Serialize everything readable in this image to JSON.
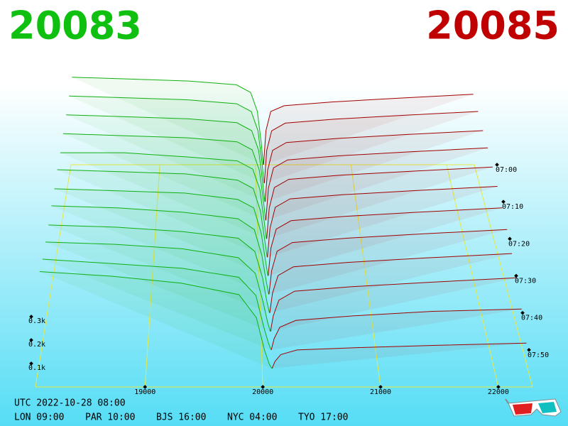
{
  "chart_data": {
    "type": "depth3d",
    "title_left": "20083",
    "title_right": "20085",
    "bid_color": "#10b010",
    "ask_color": "#a00000",
    "xlim": [
      18070,
      22290
    ],
    "xticks": [
      19000,
      20000,
      21000,
      22000
    ],
    "ylim": [
      0,
      0.5
    ],
    "yticks": [
      {
        "value": 0.1,
        "label": "0.1k"
      },
      {
        "value": 0.2,
        "label": "0.2k"
      },
      {
        "value": 0.3,
        "label": "0.3k"
      }
    ],
    "zlim": [
      "07:00",
      "08:00"
    ],
    "zticks": [
      "07:00",
      "07:10",
      "07:20",
      "07:30",
      "07:40",
      "07:50"
    ],
    "bid_prices": [
      18080,
      18700,
      19300,
      19800,
      19950,
      20020,
      20060,
      20083
    ],
    "ask_prices": [
      20085,
      20110,
      20160,
      20300,
      20800,
      21500,
      22280
    ],
    "slices": [
      {
        "time": "07:00",
        "bids": [
          0.46,
          0.45,
          0.44,
          0.42,
          0.38,
          0.28,
          0.12,
          0.0
        ],
        "asks": [
          0.0,
          0.18,
          0.28,
          0.31,
          0.33,
          0.35,
          0.37
        ]
      },
      {
        "time": "07:05",
        "bids": [
          0.45,
          0.44,
          0.43,
          0.41,
          0.37,
          0.27,
          0.11,
          0.0
        ],
        "asks": [
          0.0,
          0.17,
          0.27,
          0.31,
          0.33,
          0.35,
          0.37
        ]
      },
      {
        "time": "07:10",
        "bids": [
          0.44,
          0.43,
          0.42,
          0.4,
          0.36,
          0.26,
          0.1,
          0.0
        ],
        "asks": [
          0.0,
          0.16,
          0.26,
          0.3,
          0.32,
          0.34,
          0.36
        ]
      },
      {
        "time": "07:15",
        "bids": [
          0.43,
          0.42,
          0.41,
          0.39,
          0.35,
          0.25,
          0.1,
          0.0
        ],
        "asks": [
          0.0,
          0.16,
          0.26,
          0.3,
          0.32,
          0.34,
          0.36
        ]
      },
      {
        "time": "07:20",
        "bids": [
          0.42,
          0.42,
          0.4,
          0.38,
          0.34,
          0.24,
          0.09,
          0.0
        ],
        "asks": [
          0.0,
          0.15,
          0.25,
          0.29,
          0.31,
          0.33,
          0.35
        ]
      },
      {
        "time": "07:25",
        "bids": [
          0.42,
          0.41,
          0.4,
          0.37,
          0.33,
          0.22,
          0.08,
          0.0
        ],
        "asks": [
          0.0,
          0.14,
          0.24,
          0.28,
          0.3,
          0.32,
          0.34
        ]
      },
      {
        "time": "07:30",
        "bids": [
          0.41,
          0.4,
          0.39,
          0.36,
          0.32,
          0.2,
          0.07,
          0.0
        ],
        "asks": [
          0.0,
          0.13,
          0.22,
          0.26,
          0.28,
          0.3,
          0.32
        ]
      },
      {
        "time": "07:35",
        "bids": [
          0.41,
          0.4,
          0.38,
          0.35,
          0.3,
          0.18,
          0.06,
          0.0
        ],
        "asks": [
          0.0,
          0.11,
          0.2,
          0.24,
          0.26,
          0.28,
          0.3
        ]
      },
      {
        "time": "07:40",
        "bids": [
          0.4,
          0.39,
          0.37,
          0.34,
          0.28,
          0.16,
          0.05,
          0.0
        ],
        "asks": [
          0.0,
          0.09,
          0.17,
          0.21,
          0.23,
          0.25,
          0.27
        ]
      },
      {
        "time": "07:45",
        "bids": [
          0.4,
          0.39,
          0.37,
          0.33,
          0.26,
          0.13,
          0.04,
          0.0
        ],
        "asks": [
          0.0,
          0.07,
          0.14,
          0.18,
          0.2,
          0.22,
          0.24
        ]
      },
      {
        "time": "07:50",
        "bids": [
          0.4,
          0.38,
          0.36,
          0.32,
          0.24,
          0.1,
          0.03,
          0.0
        ],
        "asks": [
          0.0,
          0.05,
          0.1,
          0.13,
          0.15,
          0.17,
          0.18
        ]
      },
      {
        "time": "07:55",
        "bids": [
          0.42,
          0.4,
          0.37,
          0.32,
          0.22,
          0.08,
          0.02,
          0.0
        ],
        "asks": [
          0.0,
          0.03,
          0.06,
          0.08,
          0.09,
          0.1,
          0.11
        ]
      }
    ]
  },
  "footer": {
    "utc": "UTC 2022-10-28 08:00",
    "clocks": [
      "LON 09:00",
      "PAR 10:00",
      "BJS 16:00",
      "NYC 04:00",
      "TYO 17:00"
    ]
  }
}
